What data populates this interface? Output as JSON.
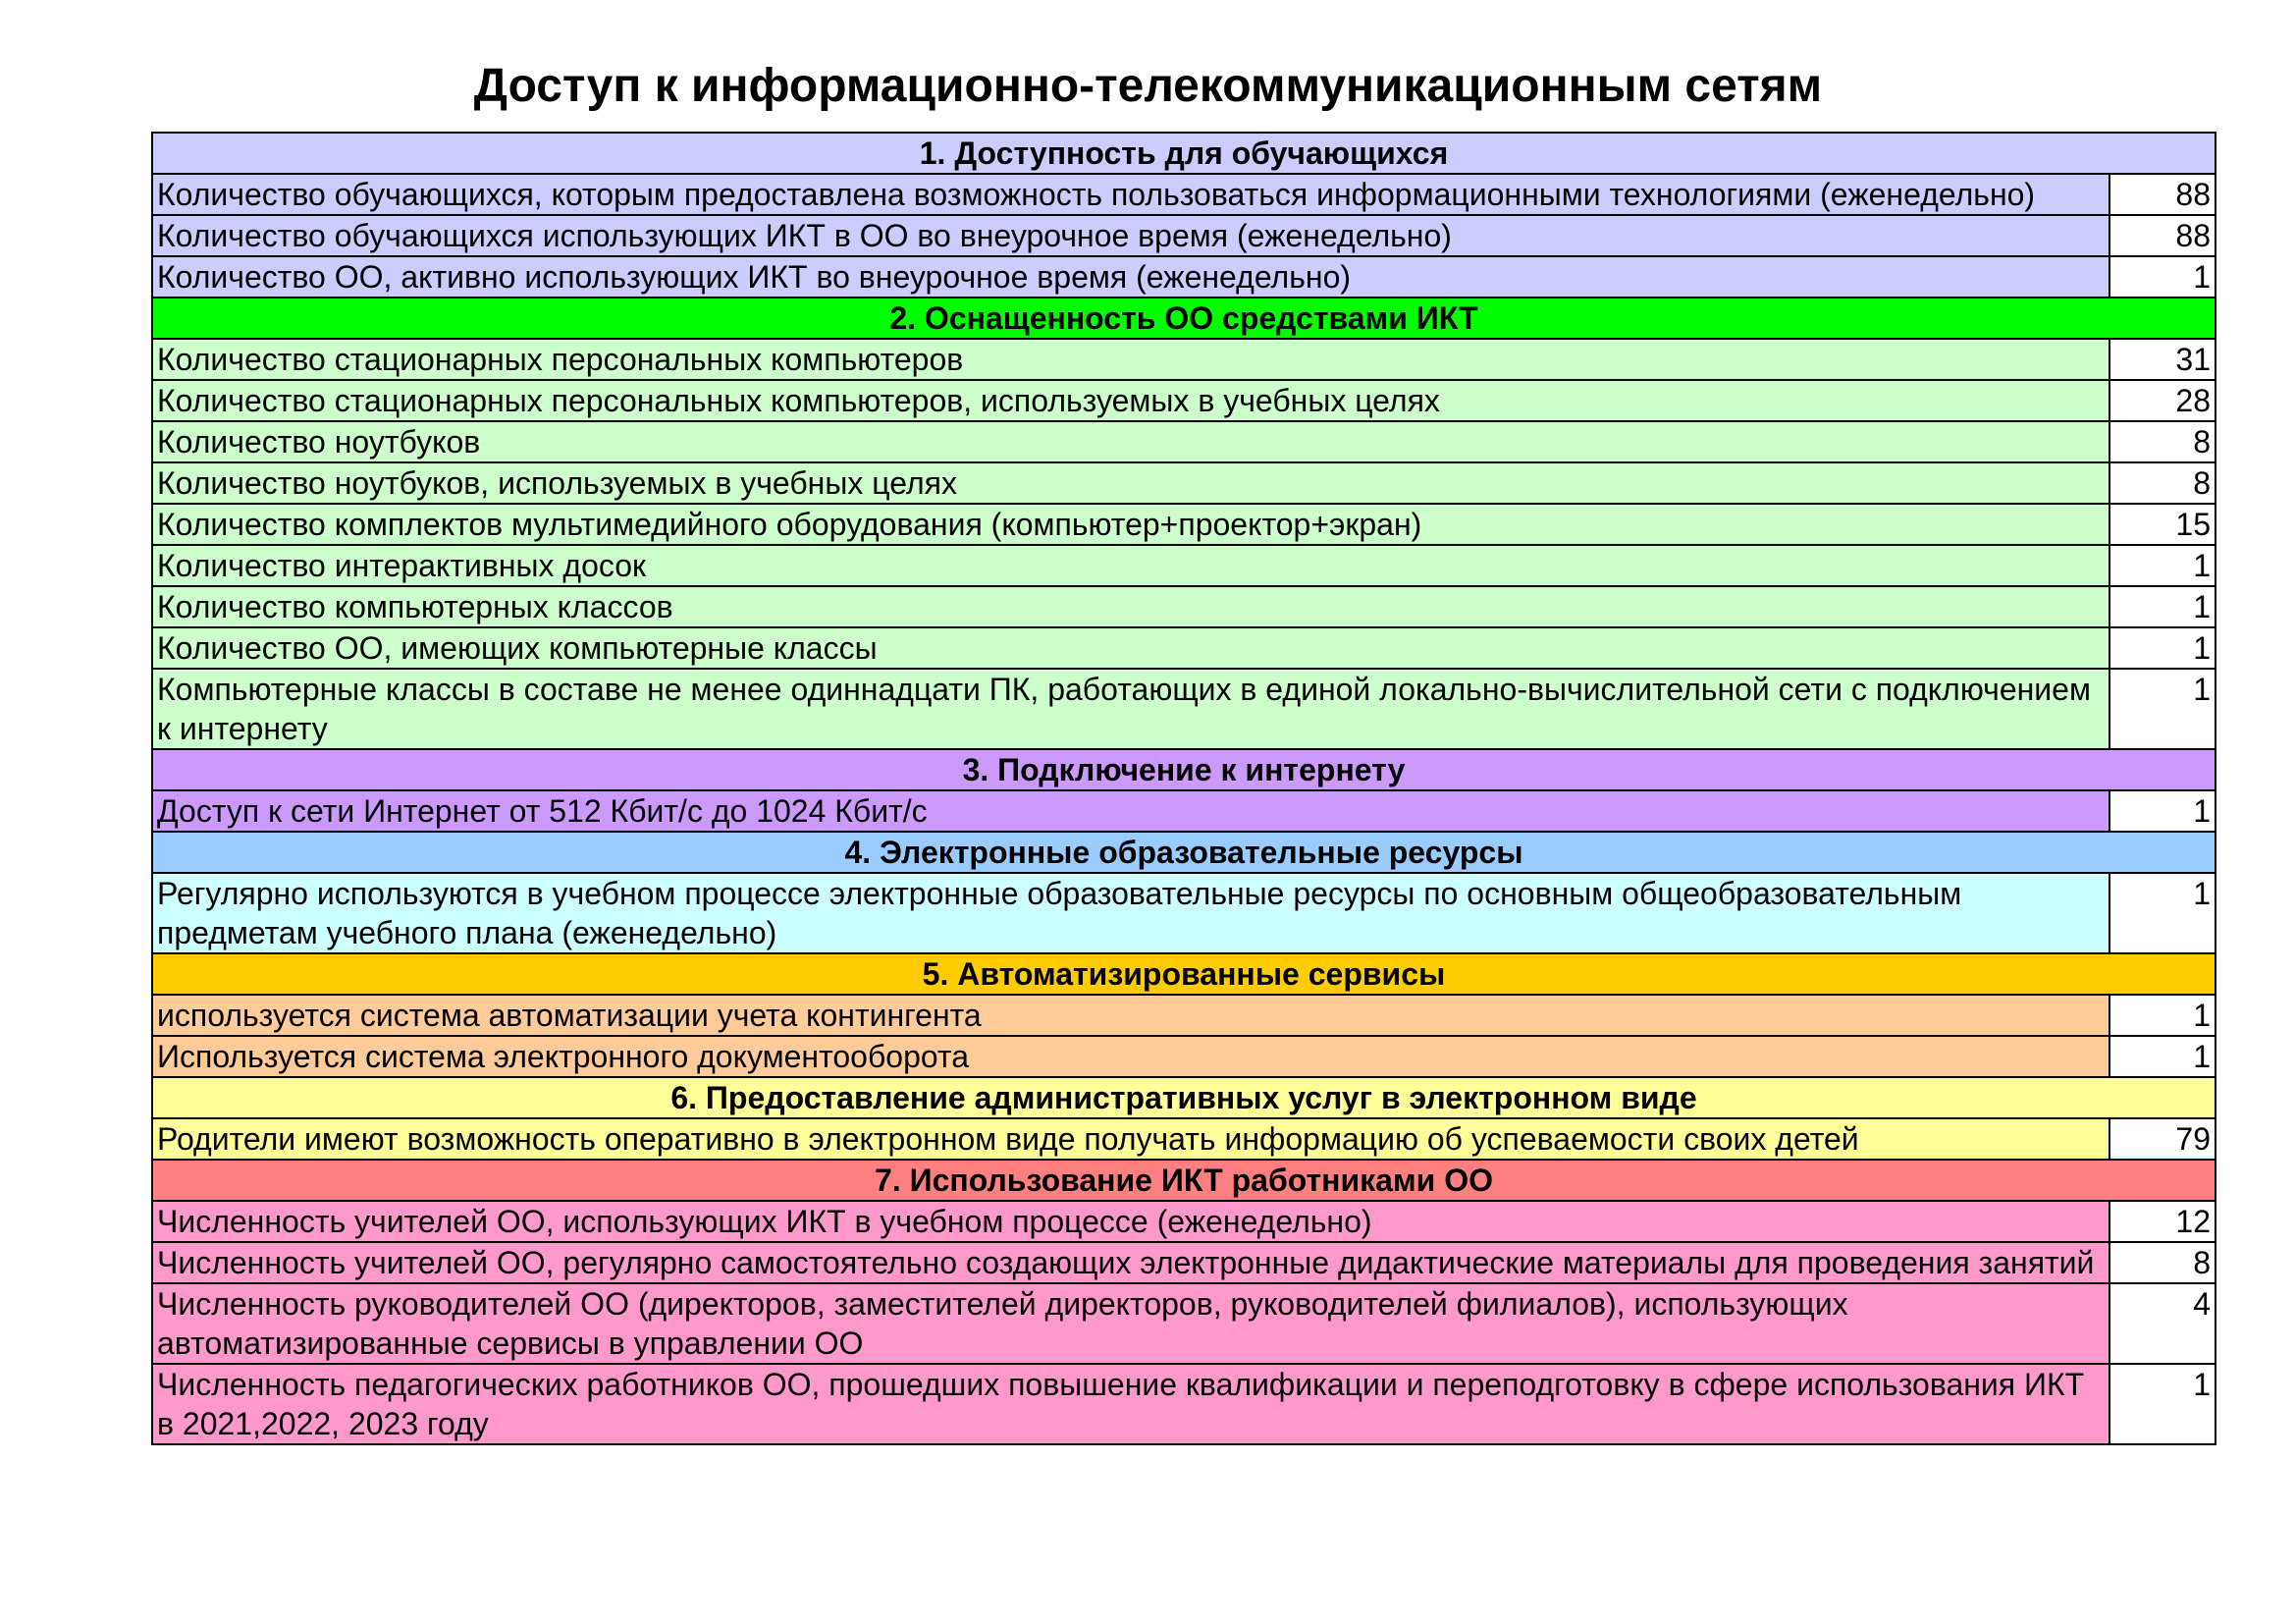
{
  "title": "Доступ к информационно-телекоммуникационным сетям",
  "sections": [
    {
      "header": "1. Доступность  для обучающихся",
      "header_color": "#ccccff",
      "row_color": "#ccccff",
      "rows": [
        {
          "label": "Количество обучающихся, которым предоставлена возможность пользоваться информационными технологиями (еженедельно)",
          "value": "88"
        },
        {
          "label": "Количество обучающихся использующих ИКТ в ОО во внеурочное время (еженедельно)",
          "value": "88"
        },
        {
          "label": "Количество ОО, активно использующих ИКТ во внеурочное время (еженедельно)",
          "value": "1"
        }
      ]
    },
    {
      "header": "2. Оснащенность ОО средствами ИКТ",
      "header_color": "#00ff00",
      "row_color": "#ccffcc",
      "rows": [
        {
          "label": "Количество стационарных персональных компьютеров",
          "value": "31"
        },
        {
          "label": "Количество стационарных персональных компьютеров, используемых в учебных целях",
          "value": "28"
        },
        {
          "label": "Количество ноутбуков",
          "value": "8"
        },
        {
          "label": "Количество ноутбуков, используемых в учебных целях",
          "value": "8"
        },
        {
          "label": "Количество комплектов мультимедийного оборудования (компьютер+проектор+экран)",
          "value": "15"
        },
        {
          "label": "Количество интерактивных досок",
          "value": "1"
        },
        {
          "label": "Количество компьютерных классов",
          "value": "1"
        },
        {
          "label": "Количество ОО, имеющих компьютерные классы",
          "value": "1"
        },
        {
          "label": "Компьютерные классы в составе не менее одиннадцати ПК, работающих в единой локально-вычислительной сети с подключением к интернету",
          "value": "1"
        }
      ]
    },
    {
      "header": "3. Подключение к интернету",
      "header_color": "#cc99ff",
      "row_color": "#cc99ff",
      "rows": [
        {
          "label": "Доступ к сети Интернет  от 512 Кбит/с до 1024 Кбит/с",
          "value": "1"
        }
      ]
    },
    {
      "header": "4. Электронные образовательные ресурсы",
      "header_color": "#99ccff",
      "row_color": "#ccffff",
      "rows": [
        {
          "label": "Регулярно используются в учебном процессе электронные образовательные ресурсы по основным общеобразовательным предметам учебного плана (еженедельно)",
          "value": "1"
        }
      ]
    },
    {
      "header": "5. Автоматизированные сервисы",
      "header_color": "#ffcc00",
      "row_color": "#ffcc99",
      "rows": [
        {
          "label": "используется система автоматизации учета контингента",
          "value": "1"
        },
        {
          "label": "Используется  система электронного документооборота",
          "value": "1"
        }
      ]
    },
    {
      "header": "6. Предоставление административных услуг в электронном виде",
      "header_color": "#ffff99",
      "row_color": "#ffff99",
      "rows": [
        {
          "label": "Родители имеют возможность оперативно в электронном виде получать информацию об успеваемости своих детей",
          "value": "79"
        }
      ]
    },
    {
      "header": "7. Использование ИКТ работниками ОО",
      "header_color": "#ff8080",
      "row_color": "#ff99cc",
      "rows": [
        {
          "label": "Численность учителей ОО, использующих ИКТ в учебном процессе (еженедельно)",
          "value": "12"
        },
        {
          "label": "Численность учителей ОО, регулярно самостоятельно создающих электронные дидактические материалы для проведения занятий",
          "value": "8"
        },
        {
          "label": "Численность руководителей ОО (директоров, заместителей  директоров, руководителей филиалов), использующих автоматизированные сервисы в управлении ОО",
          "value": "4"
        },
        {
          "label": "Численность педагогических работников ОО, прошедших повышение квалификации и переподготовку в сфере использования ИКТ в 2021,2022, 2023 году",
          "value": "1"
        }
      ]
    }
  ]
}
